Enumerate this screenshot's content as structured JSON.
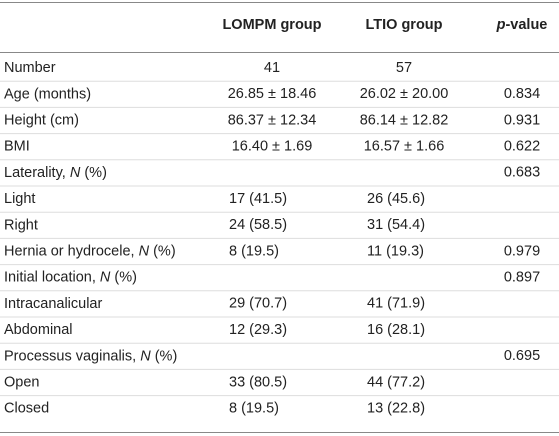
{
  "table": {
    "header": [
      null,
      [
        {
          "text": "LOMPM group"
        }
      ],
      [
        {
          "text": "LTIO group"
        }
      ],
      [
        {
          "text": "p",
          "italic": true
        },
        {
          "text": "-value"
        }
      ]
    ],
    "rows": [
      [
        [
          {
            "text": "Number"
          }
        ],
        "41",
        "57",
        null
      ],
      [
        [
          {
            "text": "Age (months)"
          }
        ],
        "26.85 ± 18.46",
        "26.02 ± 20.00",
        "0.834"
      ],
      [
        [
          {
            "text": "Height (cm)"
          }
        ],
        "86.37 ± 12.34",
        "86.14 ± 12.82",
        "0.931"
      ],
      [
        [
          {
            "text": "BMI"
          }
        ],
        "16.40 ± 1.69",
        "16.57 ± 1.66",
        "0.622"
      ],
      [
        [
          {
            "text": "Laterality, "
          },
          {
            "text": "N",
            "italic": true
          },
          {
            "text": " (%)"
          }
        ],
        null,
        null,
        "0.683"
      ],
      [
        [
          {
            "text": "Light"
          }
        ],
        "17 (41.5)",
        "26 (45.6)",
        null
      ],
      [
        [
          {
            "text": "Right"
          }
        ],
        "24 (58.5)",
        "31 (54.4)",
        null
      ],
      [
        [
          {
            "text": "Hernia or hydrocele, "
          },
          {
            "text": "N",
            "italic": true
          },
          {
            "text": " (%)"
          }
        ],
        "8 (19.5)",
        "11 (19.3)",
        "0.979"
      ],
      [
        [
          {
            "text": "Initial location, "
          },
          {
            "text": "N",
            "italic": true
          },
          {
            "text": " (%)"
          }
        ],
        null,
        null,
        "0.897"
      ],
      [
        [
          {
            "text": "Intracanalicular"
          }
        ],
        "29 (70.7)",
        "41 (71.9)",
        null
      ],
      [
        [
          {
            "text": "Abdominal"
          }
        ],
        "12 (29.3)",
        "16 (28.1)",
        null
      ],
      [
        [
          {
            "text": "Processus vaginalis, "
          },
          {
            "text": "N",
            "italic": true
          },
          {
            "text": " (%)"
          }
        ],
        null,
        null,
        "0.695"
      ],
      [
        [
          {
            "text": "Open"
          }
        ],
        "33 (80.5)",
        "44 (77.2)",
        null
      ],
      [
        [
          {
            "text": "Closed"
          }
        ],
        "8 (19.5)",
        "13 (22.8)",
        null
      ]
    ]
  }
}
